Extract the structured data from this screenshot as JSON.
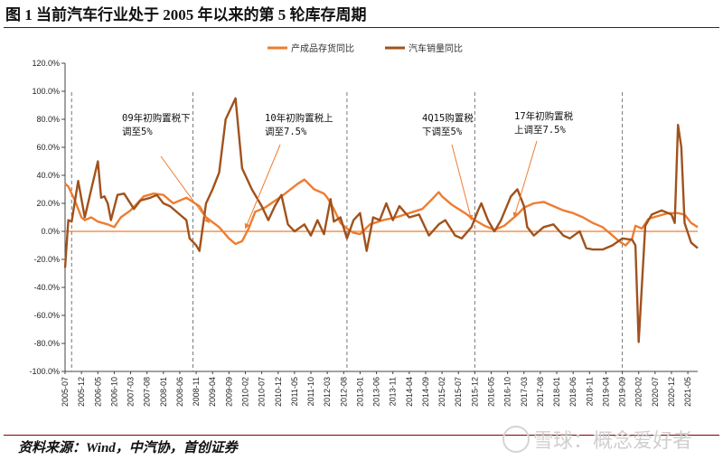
{
  "header": {
    "title": "图 1 当前汽车行业处于 2005 年以来的第 5 轮库存周期"
  },
  "footer": {
    "source": "资料来源：Wind，中汽协，首创证券",
    "watermark": "雪球：概念爱好者"
  },
  "colors": {
    "inventory": "#ED7D31",
    "sales": "#A0521D",
    "divider": "#777777",
    "zero": "#ED7D31",
    "rule": "#8B0000"
  },
  "chart_data": {
    "type": "line",
    "title": "",
    "xlabel": "",
    "ylabel": "",
    "ylim": [
      -100,
      120
    ],
    "yticks": [
      "120.0%",
      "100.0%",
      "80.0%",
      "60.0%",
      "40.0%",
      "20.0%",
      "0.0%",
      "-20.0%",
      "-40.0%",
      "-60.0%",
      "-80.0%",
      "-100.0%"
    ],
    "ytick_values": [
      120,
      100,
      80,
      60,
      40,
      20,
      0,
      -20,
      -40,
      -60,
      -80,
      -100
    ],
    "start": "2005-07",
    "end": "2021-08",
    "xtick_labels": [
      "2005-07",
      "2005-12",
      "2006-05",
      "2006-10",
      "2007-03",
      "2007-08",
      "2008-01",
      "2008-06",
      "2008-11",
      "2009-04",
      "2009-09",
      "2010-02",
      "2010-07",
      "2010-12",
      "2011-05",
      "2011-10",
      "2012-03",
      "2012-08",
      "2013-01",
      "2013-06",
      "2013-11",
      "2014-04",
      "2014-09",
      "2015-02",
      "2015-07",
      "2015-12",
      "2016-05",
      "2016-10",
      "2017-03",
      "2017-08",
      "2018-01",
      "2018-06",
      "2018-11",
      "2019-04",
      "2019-09",
      "2020-02",
      "2020-07",
      "2020-12",
      "2021-05"
    ],
    "dividers": [
      "2005-09",
      "2008-10",
      "2012-09",
      "2015-12",
      "2019-09"
    ],
    "legend": [
      "产成品存货同比",
      "汽车销量同比"
    ],
    "series": [
      {
        "name": "产成品存货同比",
        "points": [
          [
            "2005-07",
            34
          ],
          [
            "2005-08",
            32
          ],
          [
            "2005-10",
            22
          ],
          [
            "2005-12",
            10
          ],
          [
            "2006-01",
            8
          ],
          [
            "2006-03",
            10
          ],
          [
            "2006-05",
            7
          ],
          [
            "2006-08",
            5
          ],
          [
            "2006-10",
            3
          ],
          [
            "2006-12",
            10
          ],
          [
            "2007-03",
            15
          ],
          [
            "2007-07",
            25
          ],
          [
            "2007-10",
            27
          ],
          [
            "2008-01",
            26
          ],
          [
            "2008-04",
            20
          ],
          [
            "2008-08",
            24
          ],
          [
            "2008-12",
            18
          ],
          [
            "2009-02",
            10
          ],
          [
            "2009-06",
            3
          ],
          [
            "2009-09",
            -5
          ],
          [
            "2009-11",
            -9
          ],
          [
            "2010-01",
            -7
          ],
          [
            "2010-03",
            2
          ],
          [
            "2010-05",
            14
          ],
          [
            "2010-08",
            17
          ],
          [
            "2011-01",
            25
          ],
          [
            "2011-06",
            34
          ],
          [
            "2011-08",
            37
          ],
          [
            "2011-11",
            30
          ],
          [
            "2012-02",
            27
          ],
          [
            "2012-03",
            24
          ],
          [
            "2012-05",
            16
          ],
          [
            "2012-07",
            6
          ],
          [
            "2012-09",
            2
          ],
          [
            "2012-11",
            -1
          ],
          [
            "2013-01",
            -2
          ],
          [
            "2013-04",
            5
          ],
          [
            "2013-08",
            8
          ],
          [
            "2013-12",
            10
          ],
          [
            "2014-04",
            13
          ],
          [
            "2014-08",
            16
          ],
          [
            "2014-11",
            23
          ],
          [
            "2015-01",
            28
          ],
          [
            "2015-02",
            25
          ],
          [
            "2015-05",
            19
          ],
          [
            "2015-09",
            13
          ],
          [
            "2015-12",
            8
          ],
          [
            "2016-03",
            4
          ],
          [
            "2016-06",
            1
          ],
          [
            "2016-09",
            4
          ],
          [
            "2016-11",
            8
          ],
          [
            "2016-12",
            10
          ],
          [
            "2017-01",
            12
          ],
          [
            "2017-03",
            17
          ],
          [
            "2017-06",
            20
          ],
          [
            "2017-09",
            21
          ],
          [
            "2017-12",
            18
          ],
          [
            "2018-03",
            15
          ],
          [
            "2018-06",
            13
          ],
          [
            "2018-09",
            10
          ],
          [
            "2018-12",
            6
          ],
          [
            "2019-03",
            3
          ],
          [
            "2019-06",
            -3
          ],
          [
            "2019-08",
            -7
          ],
          [
            "2019-10",
            -10
          ],
          [
            "2019-12",
            -5
          ],
          [
            "2020-01",
            4
          ],
          [
            "2020-03",
            2
          ],
          [
            "2020-05",
            9
          ],
          [
            "2020-08",
            11
          ],
          [
            "2020-11",
            13
          ],
          [
            "2021-02",
            13
          ],
          [
            "2021-04",
            12
          ],
          [
            "2021-06",
            6
          ],
          [
            "2021-08",
            3
          ]
        ]
      },
      {
        "name": "汽车销量同比",
        "points": [
          [
            "2005-07",
            -26
          ],
          [
            "2005-08",
            8
          ],
          [
            "2005-09",
            7
          ],
          [
            "2005-11",
            36
          ],
          [
            "2006-01",
            10
          ],
          [
            "2006-03",
            30
          ],
          [
            "2006-05",
            50
          ],
          [
            "2006-06",
            24
          ],
          [
            "2006-07",
            25
          ],
          [
            "2006-08",
            20
          ],
          [
            "2006-09",
            8
          ],
          [
            "2006-11",
            26
          ],
          [
            "2007-01",
            27
          ],
          [
            "2007-04",
            16
          ],
          [
            "2007-06",
            22
          ],
          [
            "2007-09",
            24
          ],
          [
            "2007-11",
            26
          ],
          [
            "2008-01",
            20
          ],
          [
            "2008-03",
            18
          ],
          [
            "2008-06",
            12
          ],
          [
            "2008-08",
            8
          ],
          [
            "2008-09",
            -5
          ],
          [
            "2008-11",
            -10
          ],
          [
            "2008-12",
            -14
          ],
          [
            "2009-02",
            20
          ],
          [
            "2009-04",
            30
          ],
          [
            "2009-06",
            42
          ],
          [
            "2009-08",
            80
          ],
          [
            "2009-11",
            95
          ],
          [
            "2010-01",
            45
          ],
          [
            "2010-04",
            30
          ],
          [
            "2010-07",
            18
          ],
          [
            "2010-09",
            8
          ],
          [
            "2010-11",
            18
          ],
          [
            "2011-01",
            26
          ],
          [
            "2011-03",
            5
          ],
          [
            "2011-05",
            0
          ],
          [
            "2011-08",
            5
          ],
          [
            "2011-10",
            -3
          ],
          [
            "2011-12",
            8
          ],
          [
            "2012-02",
            -2
          ],
          [
            "2012-04",
            23
          ],
          [
            "2012-05",
            7
          ],
          [
            "2012-07",
            10
          ],
          [
            "2012-09",
            -5
          ],
          [
            "2012-11",
            8
          ],
          [
            "2013-01",
            13
          ],
          [
            "2013-03",
            -14
          ],
          [
            "2013-05",
            10
          ],
          [
            "2013-07",
            8
          ],
          [
            "2013-09",
            20
          ],
          [
            "2013-11",
            8
          ],
          [
            "2014-01",
            18
          ],
          [
            "2014-04",
            10
          ],
          [
            "2014-07",
            12
          ],
          [
            "2014-10",
            -3
          ],
          [
            "2015-01",
            5
          ],
          [
            "2015-03",
            8
          ],
          [
            "2015-06",
            -3
          ],
          [
            "2015-08",
            -5
          ],
          [
            "2015-11",
            3
          ],
          [
            "2016-01",
            15
          ],
          [
            "2016-02",
            20
          ],
          [
            "2016-04",
            8
          ],
          [
            "2016-06",
            0
          ],
          [
            "2016-08",
            8
          ],
          [
            "2016-11",
            25
          ],
          [
            "2017-01",
            30
          ],
          [
            "2017-03",
            18
          ],
          [
            "2017-04",
            3
          ],
          [
            "2017-06",
            -3
          ],
          [
            "2017-09",
            3
          ],
          [
            "2017-12",
            5
          ],
          [
            "2018-03",
            -3
          ],
          [
            "2018-05",
            -5
          ],
          [
            "2018-08",
            0
          ],
          [
            "2018-10",
            -12
          ],
          [
            "2018-12",
            -13
          ],
          [
            "2019-03",
            -13
          ],
          [
            "2019-06",
            -10
          ],
          [
            "2019-09",
            -5
          ],
          [
            "2019-12",
            -6
          ],
          [
            "2020-01",
            -10
          ],
          [
            "2020-02",
            -79
          ],
          [
            "2020-04",
            4
          ],
          [
            "2020-06",
            12
          ],
          [
            "2020-09",
            15
          ],
          [
            "2020-12",
            12
          ],
          [
            "2021-01",
            6
          ],
          [
            "2021-02",
            76
          ],
          [
            "2021-03",
            60
          ],
          [
            "2021-04",
            6
          ],
          [
            "2021-06",
            -8
          ],
          [
            "2021-08",
            -12
          ]
        ]
      }
    ],
    "annotations": [
      {
        "lines": [
          "09年初购置税下",
          "调至5%"
        ],
        "arrow_to": [
          "2009-03",
          6
        ]
      },
      {
        "lines": [
          "10年初购置税上",
          "调至7.5%"
        ],
        "arrow_to": [
          "2010-02",
          2
        ]
      },
      {
        "lines": [
          "4Q15购置税",
          "下调至5%"
        ],
        "arrow_to": [
          "2015-11",
          8
        ]
      },
      {
        "lines": [
          "17年初购置税",
          "上调至7.5%"
        ],
        "arrow_to": [
          "2016-12",
          10
        ]
      }
    ]
  }
}
